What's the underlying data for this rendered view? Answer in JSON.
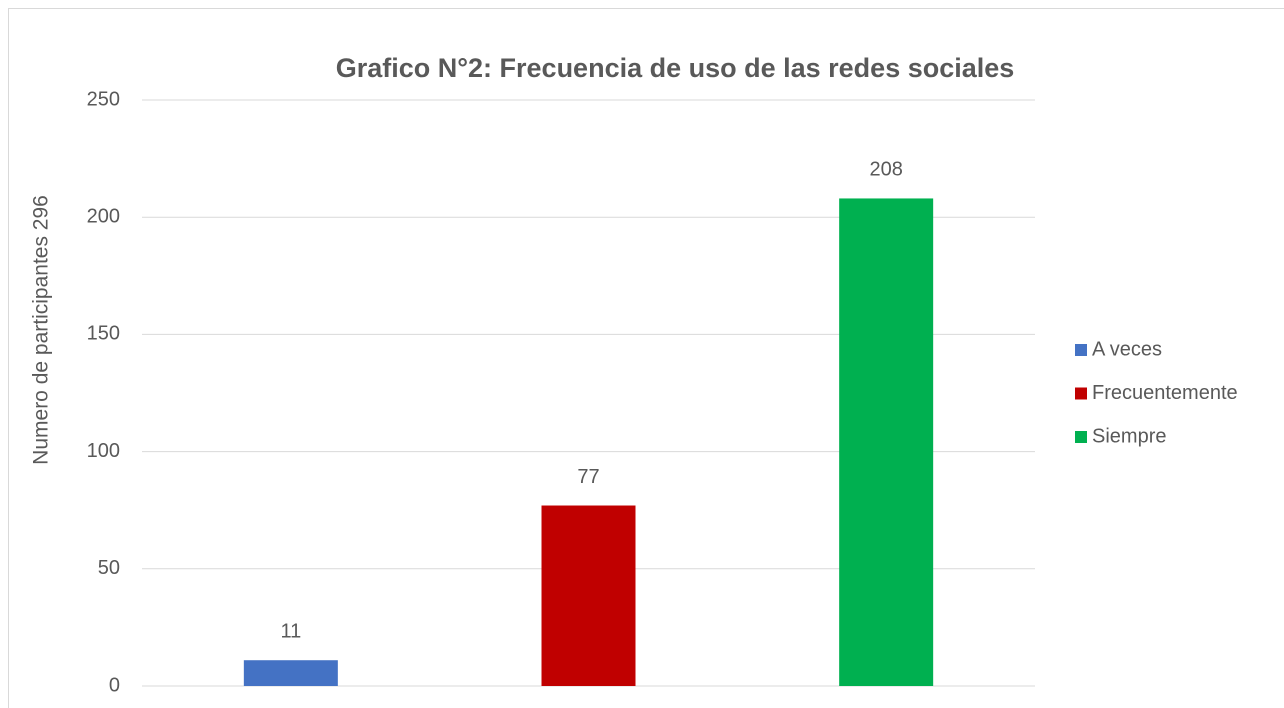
{
  "chart_data": {
    "type": "bar",
    "title": "Grafico N°2: Frecuencia de uso de las redes sociales",
    "y_label": "Numero de participantes 296",
    "series": [
      {
        "name": "A veces",
        "color": "#4472c4",
        "values": [
          11
        ]
      },
      {
        "name": "Frecuentemente",
        "color": "#c00000",
        "values": [
          77
        ]
      },
      {
        "name": "Siempre",
        "color": "#00b050",
        "values": [
          208
        ]
      }
    ],
    "ylim": [
      0,
      250
    ],
    "yticks": [
      0,
      50,
      100,
      150,
      200,
      250
    ],
    "grid": true,
    "legend": "right"
  }
}
